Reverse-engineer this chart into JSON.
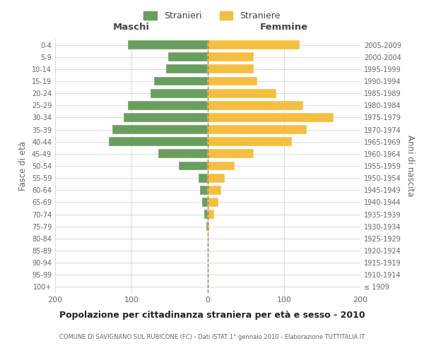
{
  "age_groups": [
    "100+",
    "95-99",
    "90-94",
    "85-89",
    "80-84",
    "75-79",
    "70-74",
    "65-69",
    "60-64",
    "55-59",
    "50-54",
    "45-49",
    "40-44",
    "35-39",
    "30-34",
    "25-29",
    "20-24",
    "15-19",
    "10-14",
    "5-9",
    "0-4"
  ],
  "birth_years": [
    "≤ 1909",
    "1910-1914",
    "1915-1919",
    "1920-1924",
    "1925-1929",
    "1930-1934",
    "1935-1939",
    "1940-1944",
    "1945-1949",
    "1950-1954",
    "1955-1959",
    "1960-1964",
    "1965-1969",
    "1970-1974",
    "1975-1979",
    "1980-1984",
    "1985-1989",
    "1990-1994",
    "1995-1999",
    "2000-2004",
    "2005-2009"
  ],
  "maschi": [
    0,
    0,
    0,
    0,
    0,
    2,
    5,
    7,
    10,
    12,
    38,
    65,
    130,
    125,
    110,
    105,
    75,
    70,
    55,
    52,
    105
  ],
  "femmine": [
    0,
    0,
    0,
    0,
    0,
    2,
    8,
    14,
    18,
    22,
    35,
    60,
    110,
    130,
    165,
    125,
    90,
    65,
    60,
    60,
    120
  ],
  "color_maschi": "#6a9e5e",
  "color_femmine": "#f5be41",
  "color_grid": "#cccccc",
  "color_dashed": "#888855",
  "title": "Popolazione per cittadinanza straniera per età e sesso - 2010",
  "subtitle": "COMUNE DI SAVIGNANO SUL RUBICONE (FC) - Dati ISTAT 1° gennaio 2010 - Elaborazione TUTTITALIA.IT",
  "ylabel_left": "Fasce di età",
  "ylabel_right": "Anni di nascita",
  "label_maschi": "Maschi",
  "label_femmine": "Femmine",
  "legend_maschi": "Stranieri",
  "legend_femmine": "Straniere",
  "xlim": 200,
  "background_color": "#ffffff"
}
